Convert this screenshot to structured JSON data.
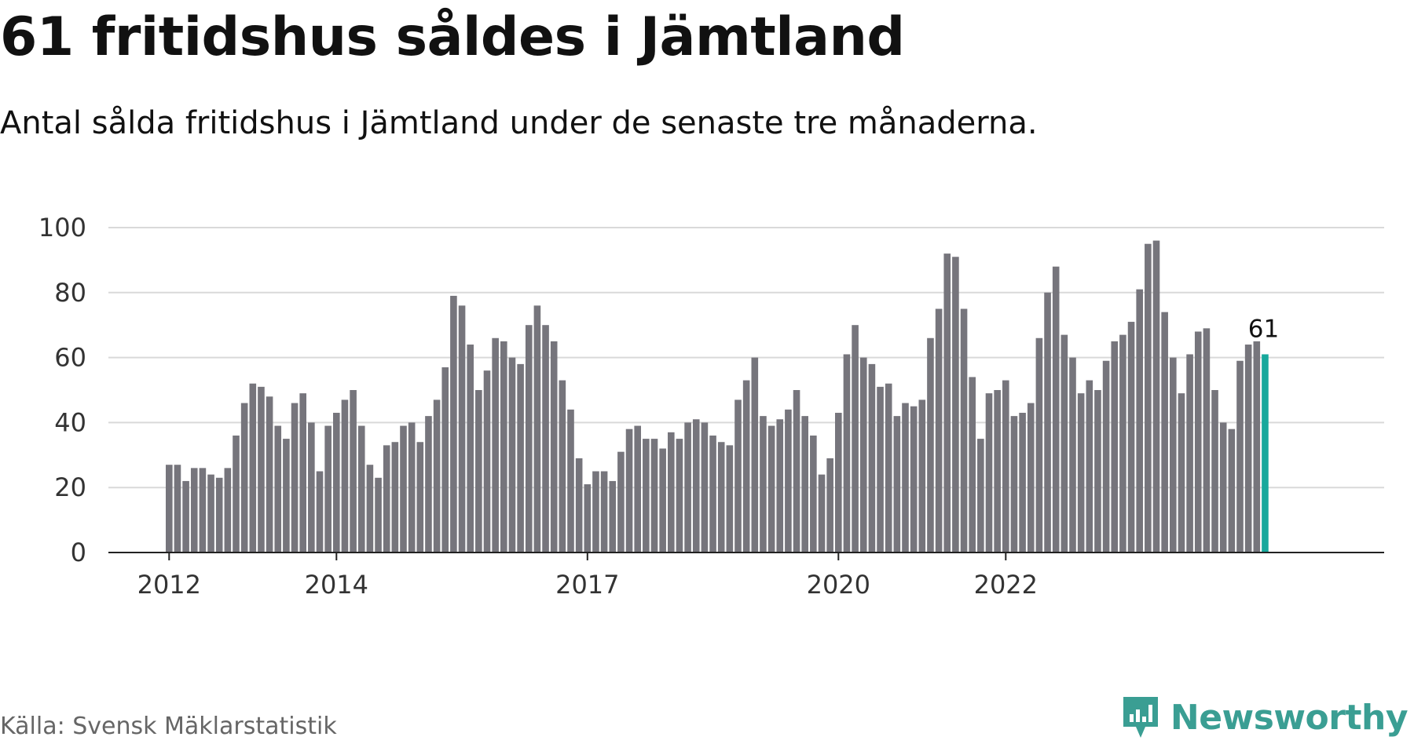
{
  "title": "61 fritidshus såldes i Jämtland",
  "subtitle": "Antal sålda fritidshus i Jämtland under de senaste tre månaderna.",
  "source": "Källa: Svensk Mäklarstatistik",
  "brand": "Newsworthy",
  "colors": {
    "bar": "#76757c",
    "highlight": "#17a89c",
    "grid": "#d9d9d9",
    "axis": "#222222",
    "brand": "#3a9e93"
  },
  "chart_data": {
    "type": "bar",
    "grid": true,
    "ylim": [
      0,
      100
    ],
    "y_ticks": [
      0,
      20,
      40,
      60,
      80,
      100
    ],
    "x_tick_labels": [
      {
        "label": "2012",
        "at": 0
      },
      {
        "label": "2014",
        "at": 20
      },
      {
        "label": "2017",
        "at": 50
      },
      {
        "label": "2020",
        "at": 80
      },
      {
        "label": "2022",
        "at": 100
      }
    ],
    "values": [
      27,
      27,
      22,
      26,
      26,
      24,
      23,
      26,
      36,
      46,
      52,
      51,
      48,
      39,
      35,
      46,
      49,
      40,
      25,
      39,
      43,
      47,
      50,
      39,
      27,
      23,
      33,
      34,
      39,
      40,
      34,
      42,
      47,
      57,
      79,
      76,
      64,
      50,
      56,
      66,
      65,
      60,
      58,
      70,
      76,
      70,
      65,
      53,
      44,
      29,
      21,
      25,
      25,
      22,
      31,
      38,
      39,
      35,
      35,
      32,
      37,
      35,
      40,
      41,
      40,
      36,
      34,
      33,
      47,
      53,
      60,
      42,
      39,
      41,
      44,
      50,
      42,
      36,
      24,
      29,
      43,
      61,
      70,
      60,
      58,
      51,
      52,
      42,
      46,
      45,
      47,
      66,
      75,
      92,
      91,
      75,
      54,
      35,
      49,
      50,
      53,
      42,
      43,
      46,
      66,
      80,
      88,
      67,
      60,
      49,
      53,
      50,
      59,
      65,
      67,
      71,
      81,
      95,
      96,
      74,
      60,
      49,
      61,
      68,
      69,
      50,
      40,
      38,
      59,
      64,
      65,
      61
    ],
    "highlight_index": 131,
    "highlight_label": "61"
  }
}
